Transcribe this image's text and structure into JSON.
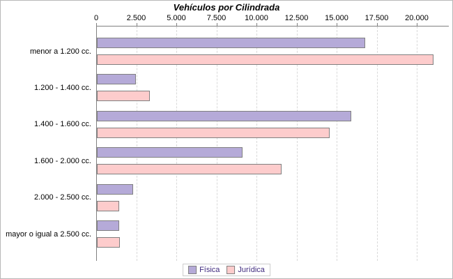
{
  "title": "Vehículos por Cilindrada",
  "colors": {
    "fisica_fill": "#b5aad8",
    "juridica_fill": "#fdcccc",
    "bar_border": "#808080",
    "axis": "#808080",
    "gridline": "#d9d9d9",
    "legend_text": "#3f2a7e",
    "title_text": "#000000"
  },
  "legend": {
    "items": [
      {
        "label": "Física",
        "color": "#b5aad8"
      },
      {
        "label": "Jurídica",
        "color": "#fdcccc"
      }
    ]
  },
  "chart_data": {
    "type": "bar",
    "orientation": "horizontal",
    "title": "Vehículos por Cilindrada",
    "categories": [
      "menor a 1.200 cc.",
      "1.200 - 1.400 cc.",
      "1.400 - 1.600 cc.",
      "1.600 - 2.000 cc.",
      "2.000 - 2.500 cc.",
      "mayor o igual a 2.500 cc."
    ],
    "series": [
      {
        "name": "Física",
        "color": "#b5aad8",
        "values": [
          16750,
          2450,
          15850,
          9100,
          2250,
          1380
        ]
      },
      {
        "name": "Jurídica",
        "color": "#fdcccc",
        "values": [
          21000,
          3300,
          14500,
          11500,
          1400,
          1420
        ]
      }
    ],
    "x_axis": {
      "min": 0,
      "max": 22000,
      "tick_interval": 2500,
      "tick_labels": [
        "0",
        "2.500",
        "5.000",
        "7.500",
        "10.000",
        "12.500",
        "15.000",
        "17.500",
        "20.000"
      ]
    },
    "grid": "vertical-dashed",
    "legend_position": "bottom"
  }
}
